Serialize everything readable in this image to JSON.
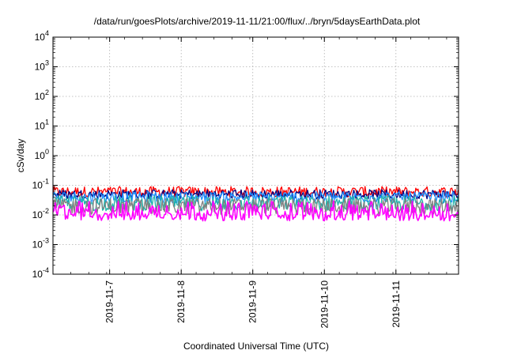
{
  "chart_data": {
    "type": "line",
    "title": "/data/run/goesPlots/archive/2019-11-11/21:00/flux/../bryn/5daysEarthData.plot",
    "xlabel": "Coordinated Universal Time (UTC)",
    "ylabel": "cSv/day",
    "yscale": "log",
    "ylim": [
      0.0001,
      10000
    ],
    "y_ticks": [
      {
        "base": "10",
        "exp": "-4",
        "value": 0.0001
      },
      {
        "base": "10",
        "exp": "-3",
        "value": 0.001
      },
      {
        "base": "10",
        "exp": "-2",
        "value": 0.01
      },
      {
        "base": "10",
        "exp": "-1",
        "value": 0.1
      },
      {
        "base": "10",
        "exp": "0",
        "value": 1
      },
      {
        "base": "10",
        "exp": "1",
        "value": 10
      },
      {
        "base": "10",
        "exp": "2",
        "value": 100
      },
      {
        "base": "10",
        "exp": "3",
        "value": 1000
      },
      {
        "base": "10",
        "exp": "4",
        "value": 10000
      }
    ],
    "x_ticks": [
      "2019-11-7",
      "2019-11-8",
      "2019-11-9",
      "2019-11-10",
      "2019-11-11"
    ],
    "xlim": [
      "2019-11-06 05:00",
      "2019-11-11 21:00"
    ],
    "grid": true,
    "legend": "none",
    "series": [
      {
        "color": "#ff0000",
        "y_min": 0.035,
        "y_max": 0.1,
        "y_typical": 0.06
      },
      {
        "color": "#000080",
        "y_min": 0.03,
        "y_max": 0.075,
        "y_typical": 0.05
      },
      {
        "color": "#1e90ff",
        "y_min": 0.02,
        "y_max": 0.06,
        "y_typical": 0.04
      },
      {
        "color": "#20b2aa",
        "y_min": 0.01,
        "y_max": 0.045,
        "y_typical": 0.025
      },
      {
        "color": "#808080",
        "y_min": 0.007,
        "y_max": 0.035,
        "y_typical": 0.02
      },
      {
        "color": "#ff00ff",
        "y_min": 0.005,
        "y_max": 0.03,
        "y_typical": 0.009
      }
    ]
  }
}
